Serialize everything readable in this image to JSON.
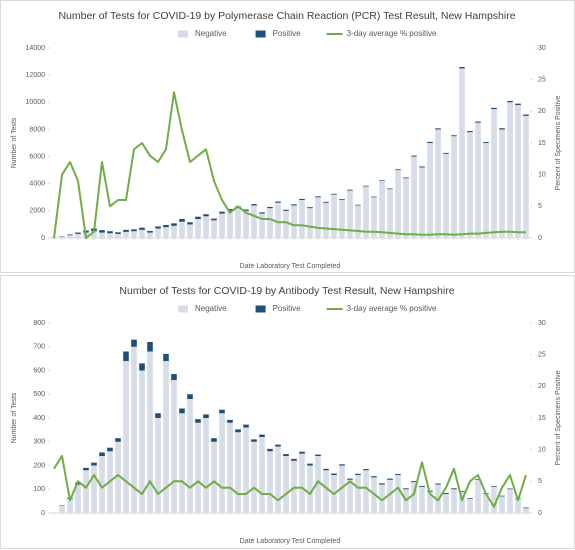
{
  "chart_data": [
    {
      "type": "bar",
      "title": "Number of Tests for COVID-19 by Polymerase Chain Reaction (PCR) Test Result, New Hampshire",
      "x_label": "Date Laboratory Test Completed",
      "y_label": "Number of Tests",
      "y2_label": "Percent of Specimens Positive",
      "categories": [
        null,
        null,
        null,
        null,
        null,
        null,
        null,
        null,
        null,
        null,
        null,
        null,
        null,
        null,
        null,
        null,
        null,
        null,
        null,
        null,
        null,
        null,
        null,
        null,
        null,
        null,
        null,
        null,
        null,
        null,
        null,
        null,
        null,
        null,
        null,
        null,
        null,
        null,
        null,
        null,
        null,
        null,
        null,
        null,
        null,
        null,
        null,
        null,
        null,
        null,
        null,
        null,
        null,
        null,
        null,
        null,
        null,
        null,
        null,
        null
      ],
      "series": [
        {
          "name": "Negative",
          "color": "#d6dce8",
          "values": [
            50,
            100,
            200,
            300,
            400,
            500,
            400,
            350,
            300,
            450,
            500,
            600,
            400,
            700,
            800,
            900,
            1200,
            1000,
            1400,
            1600,
            1300,
            1800,
            2000,
            2200,
            2000,
            2400,
            1800,
            2200,
            2600,
            2000,
            2400,
            2800,
            2200,
            3000,
            2600,
            3200,
            2800,
            3500,
            2400,
            3800,
            3000,
            4200,
            3600,
            5000,
            4400,
            6000,
            5200,
            7000,
            8000,
            6200,
            7500,
            12500,
            7800,
            8500,
            7000,
            9500,
            8000,
            10000,
            9800,
            9000
          ]
        },
        {
          "name": "Positive",
          "color": "#1f4e79",
          "values": [
            10,
            30,
            60,
            100,
            150,
            200,
            180,
            150,
            120,
            150,
            140,
            160,
            120,
            150,
            160,
            180,
            200,
            160,
            170,
            150,
            130,
            140,
            130,
            120,
            100,
            100,
            90,
            90,
            90,
            80,
            80,
            80,
            70,
            70,
            70,
            60,
            60,
            60,
            50,
            50,
            50,
            50,
            50,
            60,
            60,
            70,
            70,
            80,
            80,
            70,
            70,
            100,
            80,
            80,
            70,
            90,
            90,
            100,
            100,
            100
          ]
        },
        {
          "name": "3-day average % positive",
          "color": "#70ad47",
          "type": "line",
          "axis": "y2",
          "values": [
            0,
            10,
            12,
            9,
            0,
            1,
            12,
            5,
            6,
            6,
            14,
            15,
            13,
            12,
            14,
            23,
            17,
            12,
            13,
            14,
            9,
            6,
            4,
            5,
            4,
            3.5,
            3,
            3,
            2.5,
            2.5,
            2,
            2,
            1.8,
            1.6,
            1.5,
            1.4,
            1.3,
            1.2,
            1.1,
            1,
            1,
            0.9,
            0.8,
            0.7,
            0.6,
            0.6,
            0.5,
            0.5,
            0.6,
            0.6,
            0.5,
            0.6,
            0.7,
            0.7,
            0.8,
            0.9,
            1,
            1,
            0.9,
            0.9
          ]
        }
      ],
      "ylim": [
        0,
        14000
      ],
      "yticks": [
        0,
        2000,
        4000,
        6000,
        8000,
        10000,
        12000,
        14000
      ],
      "y2lim": [
        0,
        30
      ],
      "y2ticks": [
        0,
        5,
        10,
        15,
        20,
        25,
        30
      ],
      "stacked": true,
      "grid": false,
      "legend": "top"
    },
    {
      "type": "bar",
      "title": "Number of Tests for COVID-19 by Antibody Test Result, New Hampshire",
      "x_label": "Date Laboratory Test Completed",
      "y_label": "Number of Tests",
      "y2_label": "Percent of Specimens Positive",
      "categories": [
        null,
        null,
        null,
        null,
        null,
        null,
        null,
        null,
        null,
        null,
        null,
        null,
        null,
        null,
        null,
        null,
        null,
        null,
        null,
        null,
        null,
        null,
        null,
        null,
        null,
        null,
        null,
        null,
        null,
        null,
        null,
        null,
        null,
        null,
        null,
        null,
        null,
        null,
        null,
        null,
        null,
        null,
        null,
        null,
        null,
        null,
        null,
        null,
        null,
        null,
        null,
        null,
        null,
        null,
        null,
        null,
        null,
        null,
        null,
        null
      ],
      "series": [
        {
          "name": "Negative",
          "color": "#d6dce8",
          "values": [
            0,
            30,
            60,
            120,
            180,
            200,
            240,
            260,
            300,
            640,
            700,
            600,
            680,
            400,
            640,
            560,
            420,
            480,
            380,
            400,
            300,
            420,
            380,
            340,
            360,
            300,
            320,
            260,
            280,
            240,
            220,
            250,
            200,
            240,
            180,
            160,
            200,
            140,
            160,
            180,
            150,
            120,
            140,
            160,
            100,
            130,
            110,
            90,
            120,
            80,
            100,
            90,
            60,
            140,
            80,
            110,
            70,
            100,
            60,
            20
          ]
        },
        {
          "name": "Positive",
          "color": "#1f4e79",
          "values": [
            0,
            2,
            4,
            8,
            10,
            12,
            15,
            15,
            15,
            40,
            30,
            30,
            40,
            20,
            30,
            25,
            20,
            20,
            15,
            15,
            15,
            15,
            12,
            12,
            12,
            10,
            10,
            10,
            8,
            8,
            8,
            8,
            8,
            6,
            6,
            6,
            5,
            5,
            5,
            5,
            5,
            5,
            5,
            4,
            4,
            4,
            4,
            4,
            4,
            4,
            4,
            3,
            3,
            3,
            3,
            3,
            3,
            3,
            3,
            3
          ]
        },
        {
          "name": "3-day average % positive",
          "color": "#70ad47",
          "type": "line",
          "axis": "y2",
          "values": [
            7,
            9,
            2,
            5,
            4,
            6,
            4,
            5,
            6,
            5,
            4,
            3,
            5,
            3,
            4,
            5,
            5,
            4,
            5,
            4,
            5,
            4,
            4,
            3,
            3,
            4,
            3,
            3,
            2,
            3,
            4,
            4,
            3,
            5,
            4,
            3,
            4,
            5,
            4,
            4,
            3,
            2,
            3,
            4,
            2,
            3,
            8,
            3,
            2,
            4,
            7,
            2,
            5,
            6,
            3,
            1,
            4,
            6,
            2,
            6
          ]
        }
      ],
      "ylim": [
        0,
        800
      ],
      "yticks": [
        0,
        100,
        200,
        300,
        400,
        500,
        600,
        700,
        800
      ],
      "y2lim": [
        0,
        30
      ],
      "y2ticks": [
        0,
        5,
        10,
        15,
        20,
        25,
        30
      ],
      "stacked": true,
      "grid": false,
      "legend": "top"
    }
  ]
}
